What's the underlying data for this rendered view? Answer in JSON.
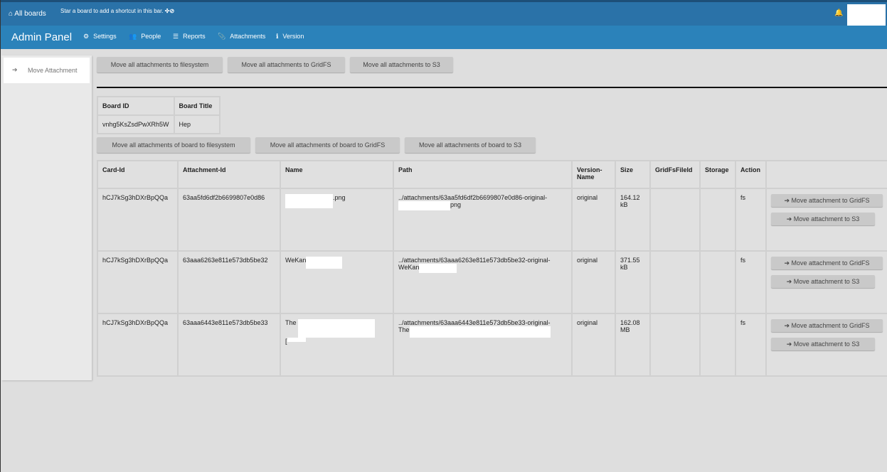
{
  "topbar": {
    "home_label": "All boards",
    "hint": "Star a board to add a shortcut in this bar.",
    "hint_icons": "✣⊘",
    "bell": "🔔"
  },
  "navbar": {
    "title": "Admin Panel",
    "items": [
      {
        "icon": "⚙",
        "label": "Settings"
      },
      {
        "icon": "👥",
        "label": "People"
      },
      {
        "icon": "☰",
        "label": "Reports"
      },
      {
        "icon": "📎",
        "label": "Attachments"
      },
      {
        "icon": "ℹ",
        "label": "Version"
      }
    ]
  },
  "sidebar": {
    "items": [
      {
        "icon": "➔",
        "label": "Move Attachment"
      }
    ]
  },
  "global_actions": [
    "Move all attachments to filesystem",
    "Move all attachments to GridFS",
    "Move all attachments to S3"
  ],
  "board_table": {
    "headers": [
      "Board ID",
      "Board Title"
    ],
    "row": [
      "vnhg5KsZsdPwXRh5W",
      "Hep"
    ]
  },
  "board_actions": [
    "Move all attachments of board to filesystem",
    "Move all attachments of board to GridFS",
    "Move all attachments of board to S3"
  ],
  "attachments": {
    "headers": [
      "Card-Id",
      "Attachment-Id",
      "Name",
      "Path",
      "Version-Name",
      "Size",
      "GridFsFileId",
      "Storage",
      "Action"
    ],
    "action_gridfs": "Move attachment to GridFS",
    "action_s3": "Move attachment to S3",
    "arrow": "➔",
    "rows": [
      {
        "card": "hCJ7kSg3hDXrBpQQa",
        "att": "63aa5fd6df2b6699807e0d86",
        "name_prefix": "",
        "name_suffix": ".png",
        "path1": "../attachments/63aa5fd6df2b6699807e0d86-original-",
        "path2": "png",
        "version": "original",
        "size": "164.12 kB",
        "gridfs": "",
        "storage": "fs"
      },
      {
        "card": "hCJ7kSg3hDXrBpQQa",
        "att": "63aaa6263e811e573db5be32",
        "name_prefix": "WeKan",
        "name_suffix": "",
        "path1": "../attachments/63aaa6263e811e573db5be32-original-",
        "path2": "WeKan",
        "version": "original",
        "size": "371.55 kB",
        "gridfs": "",
        "storage": "fs"
      },
      {
        "card": "hCJ7kSg3hDXrBpQQa",
        "att": "63aaa6443e811e573db5be33",
        "name_prefix": "The",
        "name_suffix": "[",
        "path1": "../attachments/63aaa6443e811e573db5be33-original-",
        "path2": "The",
        "version": "original",
        "size": "162.08 MB",
        "gridfs": "",
        "storage": "fs"
      }
    ]
  }
}
